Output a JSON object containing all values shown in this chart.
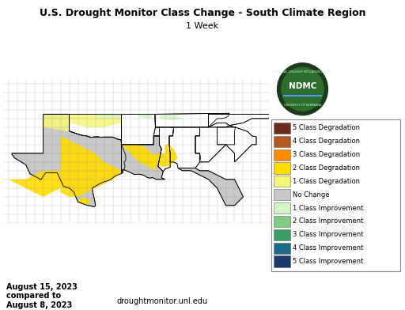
{
  "title": "U.S. Drought Monitor Class Change - South Climate Region",
  "subtitle": "1 Week",
  "date_text": "August 15, 2023\ncompared to\nAugust 8, 2023",
  "url_text": "droughtmonitor.unl.edu",
  "background_color": "#ffffff",
  "map_bg": "#c8c8c8",
  "legend_items": [
    {
      "label": "5 Class Degradation",
      "color": "#6b2a1a"
    },
    {
      "label": "4 Class Degradation",
      "color": "#b35a1f"
    },
    {
      "label": "3 Class Degradation",
      "color": "#ff8c00"
    },
    {
      "label": "2 Class Degradation",
      "color": "#ffdc00"
    },
    {
      "label": "1 Class Degradation",
      "color": "#f5f57a"
    },
    {
      "label": "No Change",
      "color": "#c8c8c8"
    },
    {
      "label": "1 Class Improvement",
      "color": "#d4f5c4"
    },
    {
      "label": "2 Class Improvement",
      "color": "#80cc80"
    },
    {
      "label": "3 Class Improvement",
      "color": "#3a9e64"
    },
    {
      "label": "4 Class Improvement",
      "color": "#1a6b8a"
    },
    {
      "label": "5 Class Improvement",
      "color": "#1a3a6b"
    }
  ],
  "title_fontsize": 9,
  "subtitle_fontsize": 8,
  "legend_fontsize": 6.0,
  "date_fontsize": 7,
  "url_fontsize": 7,
  "ndmc_outer": "#1a3a1a",
  "ndmc_mid": "#2d6e2d",
  "ndmc_inner": "#4a9a6a"
}
